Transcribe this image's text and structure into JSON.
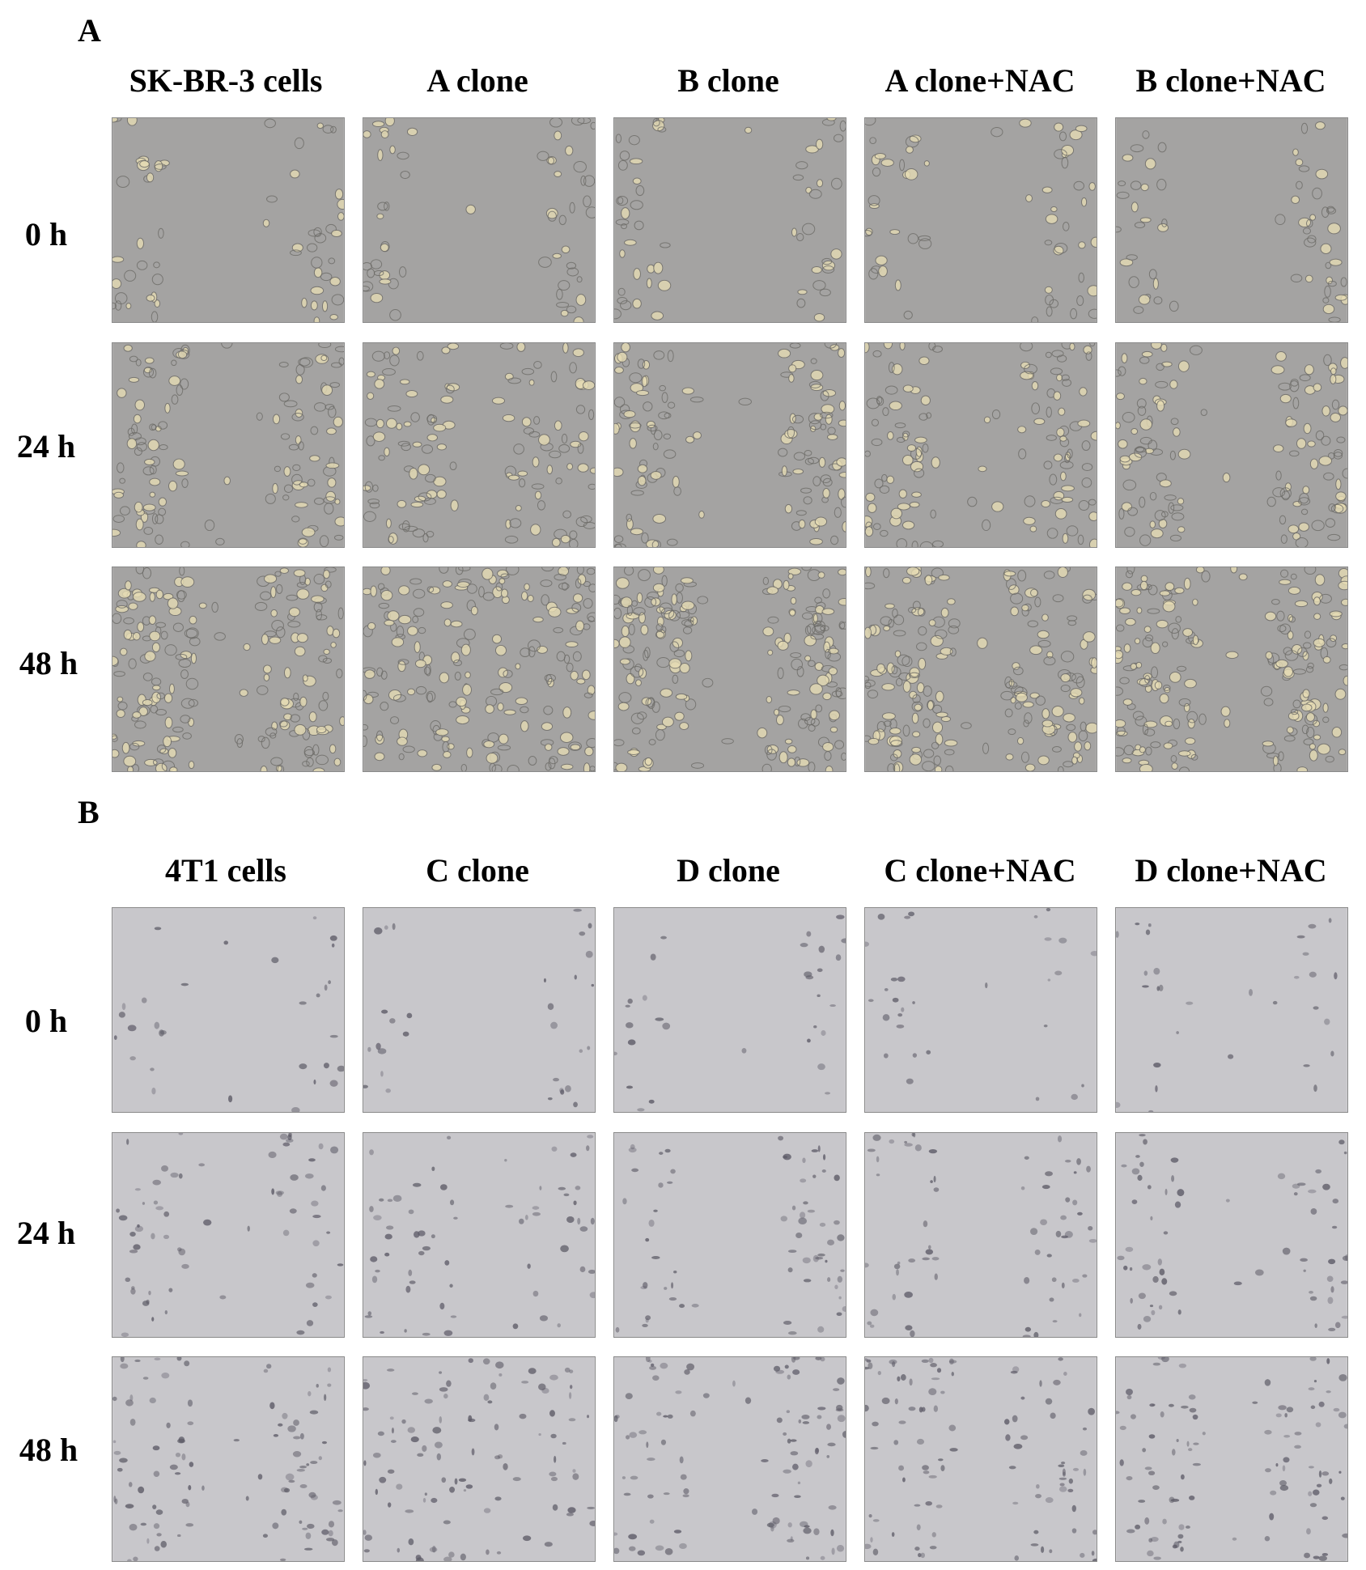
{
  "panels": [
    {
      "letter": "A",
      "columns": [
        "SK-BR-3 cells",
        "A clone",
        "B clone",
        "A clone+NAC",
        "B clone+NAC"
      ],
      "rows": [
        "0 h",
        "24 h",
        "48 h"
      ],
      "colors": {
        "background": "#a4a3a2",
        "cell_bright": "#e6dcb4",
        "cell_dark": "#6c6a66"
      }
    },
    {
      "letter": "B",
      "columns": [
        "4T1 cells",
        "C clone",
        "D clone",
        "C clone+NAC",
        "D clone+NAC"
      ],
      "rows": [
        "0 h",
        "24 h",
        "48 h"
      ],
      "colors": {
        "background": "#c8c7cb",
        "cell_bright": "#dcdae0",
        "cell_dark": "#5c5a66"
      }
    }
  ]
}
